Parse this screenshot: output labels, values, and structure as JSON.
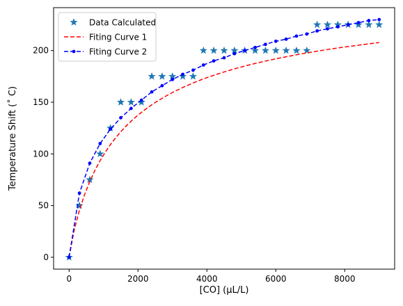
{
  "chart_data": {
    "type": "line",
    "title": "",
    "xlabel": "[CO] (μL/L)",
    "ylabel": "Temperature Shift (˚ C)",
    "xlim": [
      -450,
      9450
    ],
    "ylim": [
      -11.5,
      241.5
    ],
    "x_ticks": [
      0,
      2000,
      4000,
      6000,
      8000
    ],
    "y_ticks": [
      0,
      50,
      100,
      150,
      200
    ],
    "grid": false,
    "legend_position": "upper-left",
    "series": [
      {
        "name": "Data Calculated",
        "style": "stars",
        "color": "#1f77b4",
        "x": [
          0,
          300,
          600,
          900,
          1200,
          1500,
          1800,
          2100,
          2400,
          2700,
          3000,
          3300,
          3600,
          3900,
          4200,
          4500,
          4800,
          5100,
          5400,
          5700,
          6000,
          6300,
          6600,
          6900,
          7200,
          7500,
          7800,
          8100,
          8400,
          8700,
          9000
        ],
        "y": [
          0,
          50,
          75,
          100,
          125,
          150,
          150,
          150,
          175,
          175,
          175,
          175,
          175,
          200,
          200,
          200,
          200,
          200,
          200,
          200,
          200,
          200,
          200,
          200,
          225,
          225,
          225,
          225,
          225,
          225,
          225
        ]
      },
      {
        "name": "Fiting Curve 1",
        "style": "dashed",
        "color": "#ff0000",
        "x": [
          0,
          150,
          300,
          450,
          600,
          750,
          900,
          1050,
          1200,
          1350,
          1500,
          1650,
          1800,
          1950,
          2100,
          2250,
          2400,
          2550,
          2700,
          2850,
          3000,
          3300,
          3600,
          3900,
          4200,
          4500,
          4800,
          5100,
          5400,
          5700,
          6000,
          6300,
          6600,
          6900,
          7200,
          7500,
          7800,
          8100,
          8400,
          8700,
          9000
        ],
        "y": [
          0,
          26.7,
          45.5,
          60.7,
          73.3,
          84.1,
          93.5,
          101.7,
          109.0,
          115.5,
          121.4,
          126.8,
          131.6,
          136.1,
          140.2,
          144.0,
          147.5,
          150.8,
          153.8,
          156.7,
          159.4,
          164.3,
          168.6,
          172.6,
          176.1,
          179.3,
          182.3,
          185.0,
          187.5,
          189.8,
          192.0,
          194.0,
          195.9,
          197.7,
          199.4,
          201.0,
          202.5,
          203.9,
          205.2,
          206.5,
          207.7
        ]
      },
      {
        "name": "Fiting Curve 2",
        "style": "dashed-dots",
        "color": "#0000ff",
        "x": [
          0,
          300,
          600,
          900,
          1200,
          1500,
          1800,
          2100,
          2400,
          2700,
          3000,
          3300,
          3600,
          3900,
          4200,
          4500,
          4800,
          5100,
          5400,
          5700,
          6000,
          6300,
          6600,
          6900,
          7200,
          7500,
          7800,
          8100,
          8400,
          8700,
          9000
        ],
        "y": [
          0,
          62,
          91,
          110,
          124,
          135,
          144,
          152,
          160,
          166,
          172,
          177,
          181,
          186,
          190,
          193,
          197,
          200,
          203,
          206,
          209,
          211,
          214,
          216,
          219,
          221,
          223,
          225,
          227,
          229,
          230
        ]
      }
    ]
  }
}
